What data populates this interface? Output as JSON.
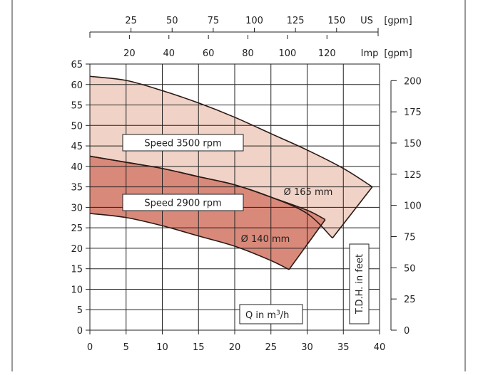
{
  "chart_data": {
    "type": "area",
    "x_axis": {
      "label": "Q in m³/h",
      "label_base": "Q in m",
      "label_sup": "3",
      "label_tail": "/h",
      "range": [
        0,
        40
      ],
      "ticks": [
        "0",
        "5",
        "10",
        "15",
        "20",
        "25",
        "30",
        "35",
        "40"
      ]
    },
    "y_axis_left": {
      "range": [
        0,
        65
      ],
      "ticks": [
        "0",
        "5",
        "10",
        "15",
        "20",
        "25",
        "30",
        "35",
        "40",
        "45",
        "50",
        "55",
        "60",
        "65"
      ]
    },
    "y_axis_right": {
      "label": "T.D.H. in feet",
      "range": [
        0,
        213.3
      ],
      "ticks": [
        "0",
        "25",
        "50",
        "75",
        "100",
        "125",
        "150",
        "175",
        "200"
      ]
    },
    "top_axis_us": {
      "unit": "US",
      "unit_bracket": "[gpm]",
      "ticks": [
        "25",
        "50",
        "75",
        "100",
        "125",
        "150"
      ]
    },
    "top_axis_imp": {
      "unit": "Imp",
      "unit_bracket": "[gpm]",
      "ticks": [
        "20",
        "40",
        "60",
        "80",
        "100",
        "120"
      ]
    },
    "grid": true,
    "series": [
      {
        "name": "Speed 3500 rpm",
        "diameter_label": "Ø 165 mm",
        "color": "#f0d2c6",
        "upper_curve": [
          [
            0,
            62
          ],
          [
            5,
            61
          ],
          [
            10,
            58.5
          ],
          [
            15,
            55.5
          ],
          [
            20,
            52
          ],
          [
            25,
            48
          ],
          [
            30,
            44
          ],
          [
            35,
            39.5
          ],
          [
            39,
            35
          ]
        ],
        "lower_curve": [
          [
            0,
            42.5
          ],
          [
            5,
            41
          ],
          [
            10,
            39.5
          ],
          [
            15,
            37.5
          ],
          [
            20,
            35.5
          ],
          [
            25,
            32.5
          ],
          [
            30,
            28.5
          ],
          [
            33.5,
            22.5
          ]
        ]
      },
      {
        "name": "Speed 2900 rpm",
        "diameter_label": "Ø 140 mm",
        "color": "#d9897a",
        "upper_curve": [
          [
            0,
            42.5
          ],
          [
            5,
            41
          ],
          [
            10,
            39.5
          ],
          [
            15,
            37.5
          ],
          [
            20,
            35.5
          ],
          [
            25,
            32.5
          ],
          [
            30,
            29.3
          ],
          [
            32.5,
            27
          ]
        ],
        "lower_curve": [
          [
            0,
            28.5
          ],
          [
            5,
            27.5
          ],
          [
            10,
            25.5
          ],
          [
            15,
            23
          ],
          [
            20,
            20.5
          ],
          [
            25,
            17
          ],
          [
            27.5,
            14.8
          ]
        ]
      }
    ]
  }
}
